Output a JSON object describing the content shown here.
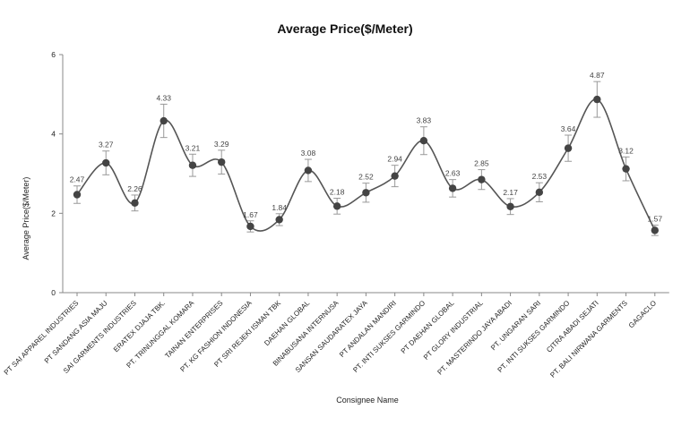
{
  "chart_data": {
    "type": "line",
    "title": "Average Price($/Meter)",
    "xlabel": "Consignee Name",
    "ylabel": "Average Price($/Meter)",
    "ylim": [
      0,
      6
    ],
    "yticks": [
      "0",
      "2",
      "4",
      "6"
    ],
    "grid": false,
    "smooth": true,
    "error_bars": true,
    "colors": {
      "line": "#555555",
      "marker": "#444444",
      "error_bar": "#999999",
      "axis": "#888888"
    },
    "categories": [
      "PT SAI APPAREL INDUSTRIES",
      "PT SANDANG ASIA MAJU",
      "SAI GARMENTS INDUSTRIES",
      "ERATEX DJAJA TBK.",
      "PT. TRINUNGGAL KOMARA",
      "TAINAN ENTERPRISES",
      "PT. KG FASHION INDONESIA",
      "PT SRI REJEKI ISMAN TBK",
      "DAEHAN GLOBAL",
      "BINABUSANA INTERNUSA",
      "SANSAN SAUDARATEX JAYA",
      "PT ANDALAN MANDIRI",
      "PT. INTI SUKSES GARMINDO",
      "PT DAEHAN GLOBAL",
      "PT GLORY INDUSTRIAL",
      "PT. MASTERINDO JAYA ABADI",
      "PT. UNGARAN SARI",
      "PT. INTI SUKSES GARMINDO",
      "CITRA ABADI SEJATI",
      "PT. BALI NIRWANA GARMENTS",
      "GAGACLO"
    ],
    "series": [
      {
        "values": [
          2.47,
          3.27,
          2.26,
          4.33,
          3.21,
          3.29,
          1.67,
          1.84,
          3.08,
          2.18,
          2.52,
          2.94,
          3.83,
          2.63,
          2.85,
          2.17,
          2.53,
          3.64,
          4.87,
          3.12,
          1.57
        ],
        "labels": [
          "2.47",
          "3.27",
          "2.26",
          "4.33",
          "3.21",
          "3.29",
          "1.67",
          "1.84",
          "3.08",
          "2.18",
          "2.52",
          "2.94",
          "3.83",
          "2.63",
          "2.85",
          "2.17",
          "2.53",
          "3.64",
          "4.87",
          "3.12",
          "1.57"
        ],
        "error": [
          0.22,
          0.3,
          0.2,
          0.42,
          0.28,
          0.3,
          0.14,
          0.15,
          0.28,
          0.2,
          0.24,
          0.27,
          0.35,
          0.22,
          0.25,
          0.2,
          0.24,
          0.33,
          0.45,
          0.3,
          0.13
        ]
      }
    ]
  }
}
